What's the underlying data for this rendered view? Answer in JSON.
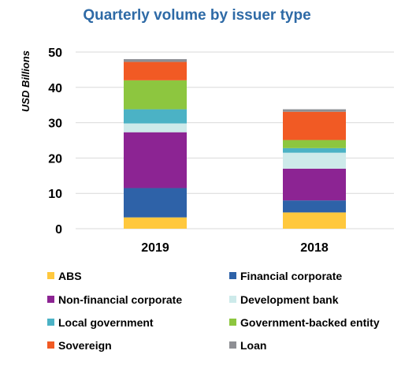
{
  "chart_data": {
    "type": "bar",
    "stacked": true,
    "title": "Quarterly volume by issuer type",
    "xlabel": "",
    "ylabel": "USD Billions",
    "categories": [
      "2019",
      "2018"
    ],
    "ylim": [
      0,
      50
    ],
    "yticks": [
      0,
      10,
      20,
      30,
      40,
      50
    ],
    "grid": true,
    "legend_position": "bottom",
    "series": [
      {
        "name": "ABS",
        "color": "#ffc83d",
        "values": [
          3.2,
          4.6
        ]
      },
      {
        "name": "Financial corporate",
        "color": "#2e62a8",
        "values": [
          8.3,
          3.4
        ]
      },
      {
        "name": "Non-financial corporate",
        "color": "#8c2493",
        "values": [
          15.8,
          9.0
        ]
      },
      {
        "name": "Development bank",
        "color": "#cdeaea",
        "values": [
          2.5,
          4.5
        ]
      },
      {
        "name": "Local government",
        "color": "#4bb2c5",
        "values": [
          4.0,
          1.3
        ]
      },
      {
        "name": "Government-backed entity",
        "color": "#8dc63f",
        "values": [
          8.2,
          2.3
        ]
      },
      {
        "name": "Sovereign",
        "color": "#f15a24",
        "values": [
          5.2,
          8.0
        ]
      },
      {
        "name": "Loan",
        "color": "#8e8f94",
        "values": [
          0.8,
          0.7
        ]
      }
    ]
  }
}
